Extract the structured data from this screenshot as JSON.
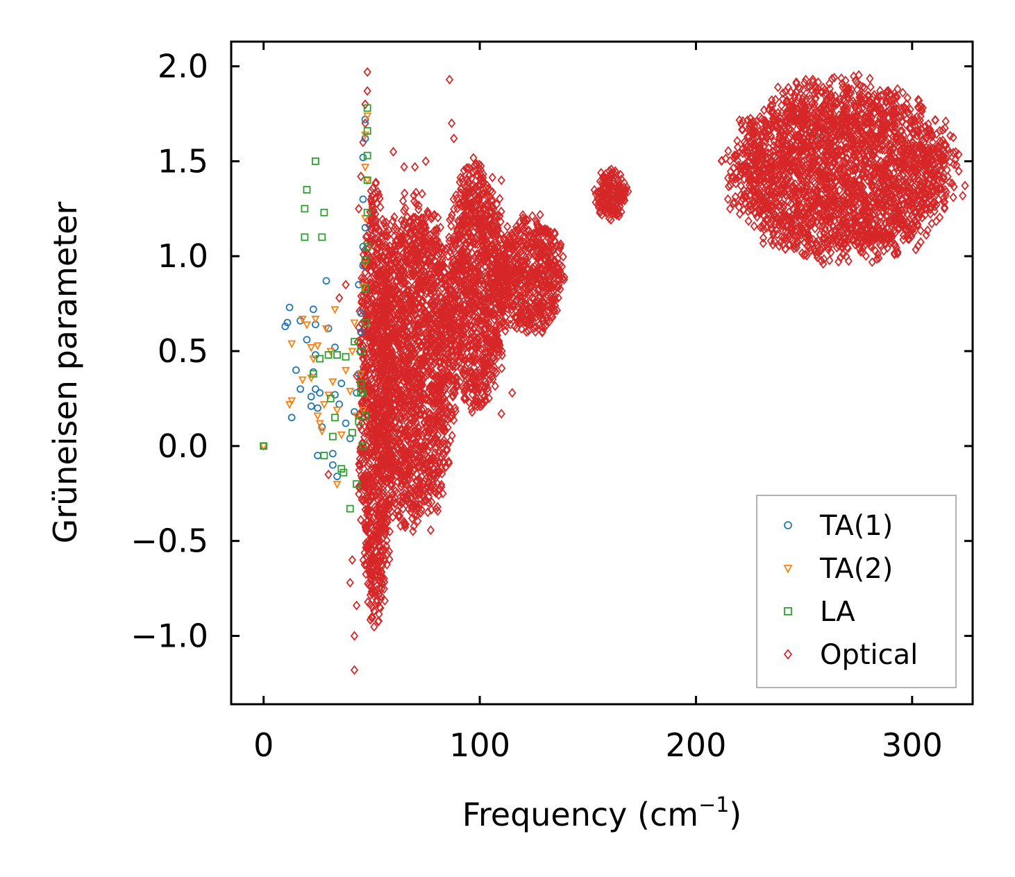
{
  "chart_data": {
    "type": "scatter",
    "title": "",
    "xlabel": "Frequency (cm",
    "xlabel_superscript": "−1",
    "xlabel_suffix": ")",
    "ylabel": "Grüneisen parameter",
    "xlim": [
      -15,
      328
    ],
    "ylim": [
      -1.36,
      2.13
    ],
    "xticks": [
      0,
      100,
      200,
      300
    ],
    "xtick_labels": [
      "0",
      "100",
      "200",
      "300"
    ],
    "yticks": [
      -1.0,
      -0.5,
      0.0,
      0.5,
      1.0,
      1.5,
      2.0
    ],
    "ytick_labels": [
      "−1.0",
      "−0.5",
      "0.0",
      "0.5",
      "1.0",
      "1.5",
      "2.0"
    ],
    "legend_position": "lower-right",
    "grid": false,
    "series": [
      {
        "name": "TA(1)",
        "marker": "circle",
        "color": "#1f77b4",
        "points": [
          [
            0,
            0
          ],
          [
            10,
            0.63
          ],
          [
            11,
            0.65
          ],
          [
            12,
            0.73
          ],
          [
            13,
            0.15
          ],
          [
            15,
            0.4
          ],
          [
            17,
            0.66
          ],
          [
            17,
            0.3
          ],
          [
            20,
            0.56
          ],
          [
            22,
            0.26
          ],
          [
            22,
            0.21
          ],
          [
            23,
            0.39
          ],
          [
            23,
            0.72
          ],
          [
            24,
            0.3
          ],
          [
            24,
            0.64
          ],
          [
            24,
            0.48
          ],
          [
            25,
            -0.05
          ],
          [
            25,
            0.2
          ],
          [
            26,
            0.28
          ],
          [
            27,
            0.1
          ],
          [
            29,
            0.87
          ],
          [
            30,
            0.62
          ],
          [
            32,
            -0.04
          ],
          [
            32,
            -0.1
          ],
          [
            33,
            0.52
          ],
          [
            33,
            0.27
          ],
          [
            34,
            -0.16
          ],
          [
            35,
            0.22
          ],
          [
            36,
            0.33
          ],
          [
            38,
            0.12
          ],
          [
            40,
            0.04
          ],
          [
            42,
            0.18
          ],
          [
            43,
            0.28
          ],
          [
            44,
            0.38
          ],
          [
            45,
            0.5
          ],
          [
            45,
            0.7
          ],
          [
            46,
            0.95
          ],
          [
            46,
            1.3
          ],
          [
            46,
            1.52
          ],
          [
            47,
            1.72
          ],
          [
            47,
            1.62
          ],
          [
            47,
            1.15
          ],
          [
            45,
            0.6
          ],
          [
            44,
            0.85
          ],
          [
            46,
            1.05
          ]
        ]
      },
      {
        "name": "TA(2)",
        "marker": "triangle-down",
        "color": "#ff7f0e",
        "points": [
          [
            0,
            0
          ],
          [
            12,
            0.22
          ],
          [
            13,
            0.24
          ],
          [
            13,
            0.54
          ],
          [
            18,
            0.67
          ],
          [
            18,
            0.35
          ],
          [
            20,
            0.64
          ],
          [
            22,
            0.52
          ],
          [
            22,
            0.36
          ],
          [
            23,
            0.46
          ],
          [
            24,
            0.67
          ],
          [
            25,
            0.53
          ],
          [
            25,
            0.16
          ],
          [
            26,
            0.12
          ],
          [
            27,
            0.08
          ],
          [
            28,
            0.22
          ],
          [
            29,
            0.62
          ],
          [
            30,
            0.27
          ],
          [
            31,
            0.5
          ],
          [
            32,
            0.34
          ],
          [
            33,
            0.72
          ],
          [
            34,
            0.19
          ],
          [
            34,
            -0.2
          ],
          [
            36,
            0.06
          ],
          [
            38,
            0.4
          ],
          [
            40,
            0.29
          ],
          [
            41,
            0.5
          ],
          [
            42,
            0.65
          ],
          [
            43,
            0.16
          ],
          [
            45,
            0.38
          ],
          [
            46,
            0.19
          ],
          [
            46,
            0.84
          ],
          [
            47,
            1.2
          ],
          [
            47,
            1.47
          ],
          [
            47,
            1.64
          ],
          [
            48,
            1.74
          ],
          [
            48,
            1.4
          ],
          [
            47,
            0.96
          ]
        ]
      },
      {
        "name": "LA",
        "marker": "square",
        "color": "#2ca02c",
        "points": [
          [
            0,
            0
          ],
          [
            19,
            1.1
          ],
          [
            19,
            1.25
          ],
          [
            20,
            1.35
          ],
          [
            23,
            0.38
          ],
          [
            24,
            1.5
          ],
          [
            26,
            0.46
          ],
          [
            27,
            1.1
          ],
          [
            28,
            1.23
          ],
          [
            28,
            -0.05
          ],
          [
            30,
            0.48
          ],
          [
            31,
            0.25
          ],
          [
            32,
            0.05
          ],
          [
            33,
            0.15
          ],
          [
            34,
            0.48
          ],
          [
            36,
            -0.12
          ],
          [
            37,
            -0.14
          ],
          [
            38,
            0.47
          ],
          [
            40,
            -0.33
          ],
          [
            41,
            0.07
          ],
          [
            42,
            0.55
          ],
          [
            43,
            -0.2
          ],
          [
            45,
            0.5
          ],
          [
            45,
            0.33
          ],
          [
            46,
            0.0
          ],
          [
            46,
            0.28
          ],
          [
            47,
            0.16
          ],
          [
            47,
            0.65
          ],
          [
            47,
            0.98
          ],
          [
            48,
            1.05
          ],
          [
            48,
            1.23
          ],
          [
            48,
            1.4
          ],
          [
            48,
            1.53
          ],
          [
            48,
            1.66
          ],
          [
            48,
            1.78
          ],
          [
            47,
            0.83
          ],
          [
            45,
            0.28
          ],
          [
            44,
            0.13
          ]
        ]
      },
      {
        "name": "Optical",
        "marker": "diamond",
        "color": "#d62728",
        "clusters": [
          {
            "x_range": [
              44,
              60
            ],
            "y_range": [
              -0.85,
              1.3
            ],
            "density": "dense"
          },
          {
            "x_range": [
              52,
              88
            ],
            "y_range": [
              -0.4,
              1.25
            ],
            "density": "dense"
          },
          {
            "x_range": [
              85,
              112
            ],
            "y_range": [
              0.2,
              1.45
            ],
            "density": "dense"
          },
          {
            "x_range": [
              108,
              138
            ],
            "y_range": [
              0.6,
              1.2
            ],
            "density": "dense"
          },
          {
            "x_range": [
              153,
              168
            ],
            "y_range": [
              1.2,
              1.45
            ],
            "density": "dense"
          },
          {
            "x_range": [
              217,
              318
            ],
            "y_range": [
              1.0,
              1.9
            ],
            "density": "dense"
          }
        ],
        "outliers": [
          [
            40,
            -0.72
          ],
          [
            42,
            -1.0
          ],
          [
            42,
            -1.18
          ],
          [
            41,
            -0.6
          ],
          [
            43,
            -0.84
          ],
          [
            44,
            1.25
          ],
          [
            45,
            1.42
          ],
          [
            46,
            1.6
          ],
          [
            47,
            1.8
          ],
          [
            48,
            1.97
          ],
          [
            48,
            1.87
          ],
          [
            47,
            1.7
          ],
          [
            86,
            1.93
          ],
          [
            87,
            1.7
          ],
          [
            88,
            1.62
          ],
          [
            72,
            0.39
          ],
          [
            70,
            -0.12
          ],
          [
            102,
            0.4
          ],
          [
            110,
            0.17
          ],
          [
            115,
            0.28
          ],
          [
            110,
            1.4
          ],
          [
            120,
            1.2
          ],
          [
            125,
            1.1
          ],
          [
            60,
            1.55
          ],
          [
            65,
            1.47
          ],
          [
            70,
            1.47
          ],
          [
            75,
            1.5
          ],
          [
            30,
            -0.15
          ],
          [
            35,
            0.78
          ],
          [
            38,
            0.85
          ]
        ]
      }
    ]
  },
  "legend": {
    "items": [
      {
        "label": "TA(1)",
        "color": "#1f77b4",
        "marker": "circle"
      },
      {
        "label": "TA(2)",
        "color": "#ff7f0e",
        "marker": "triangle-down"
      },
      {
        "label": "LA",
        "color": "#2ca02c",
        "marker": "square"
      },
      {
        "label": "Optical",
        "color": "#d62728",
        "marker": "diamond"
      }
    ]
  }
}
